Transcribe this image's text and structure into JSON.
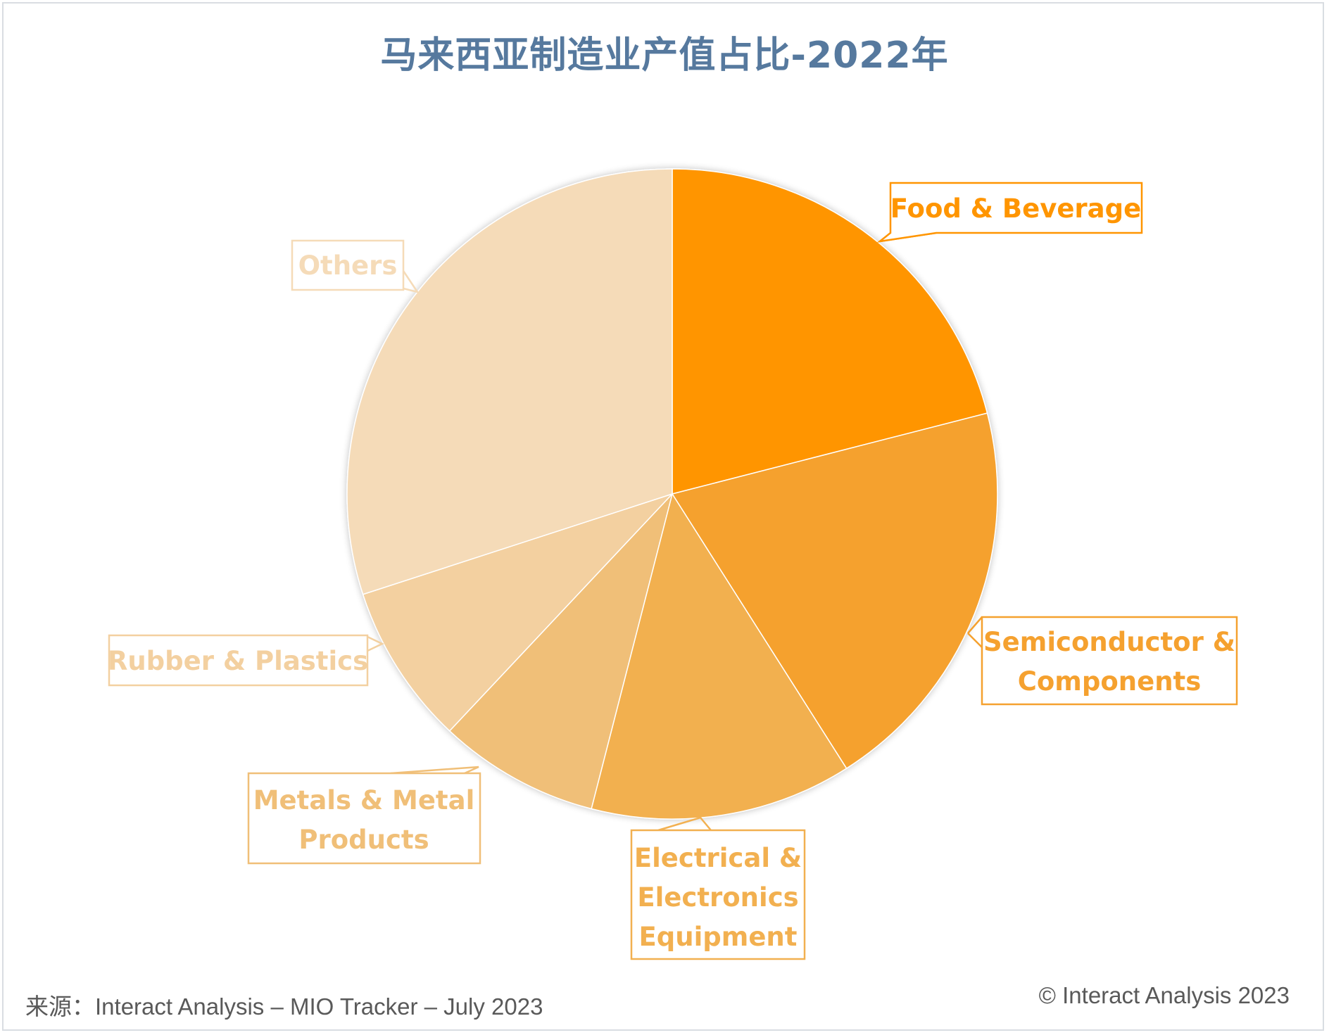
{
  "chart_data": {
    "type": "pie",
    "title": "马来西亚制造业产值占比-2022年",
    "categories": [
      "Food & Beverage",
      "Semiconductor & Components",
      "Electrical & Electronics Equipment",
      "Metals & Metal Products",
      "Rubber & Plastics",
      "Others"
    ],
    "values": [
      21,
      20,
      13,
      8,
      8,
      30
    ],
    "unit": "%",
    "colors": [
      "#ff9500",
      "#f5a12f",
      "#f2b050",
      "#f0bf78",
      "#f3d0a0",
      "#f5dbb8"
    ],
    "label_colors": [
      "#ff9500",
      "#f5a12f",
      "#f2b050",
      "#f0bf78",
      "#f3d0a0",
      "#f5dbb8"
    ],
    "labels": {
      "food": [
        "Food & Beverage"
      ],
      "semi": [
        "Semiconductor &",
        "Components"
      ],
      "elec": [
        "Electrical &",
        "Electronics",
        "Equipment"
      ],
      "metal": [
        "Metals & Metal",
        "Products"
      ],
      "rubber": [
        "Rubber & Plastics"
      ],
      "others": [
        "Others"
      ]
    },
    "legend": "none"
  },
  "footer": {
    "source": "来源：Interact Analysis – MIO Tracker – July 2023",
    "copyright": "© Interact Analysis 2023"
  }
}
